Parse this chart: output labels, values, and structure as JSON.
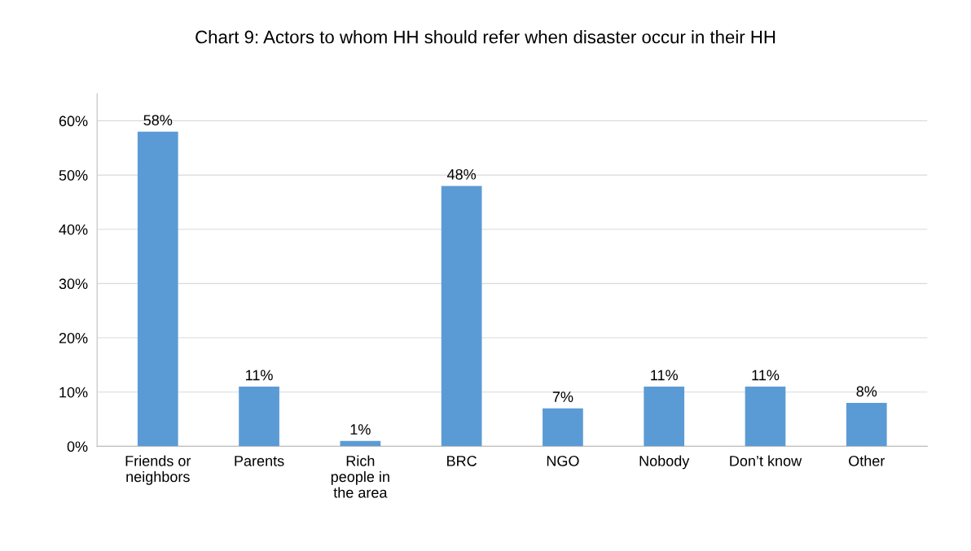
{
  "chart_data": {
    "type": "bar",
    "title": "Chart 9: Actors to whom HH should refer when disaster occur in their HH",
    "categories": [
      "Friends or\nneighbors",
      "Parents",
      "Rich\npeople in\nthe area",
      "BRC",
      "NGO",
      "Nobody",
      "Don’t know",
      "Other"
    ],
    "values": [
      58,
      11,
      1,
      48,
      7,
      11,
      11,
      8
    ],
    "value_labels": [
      "58%",
      "11%",
      "1%",
      "48%",
      "7%",
      "11%",
      "11%",
      "8%"
    ],
    "color": "#5b9bd5",
    "ylim": [
      0,
      65
    ],
    "yticks": [
      {
        "value": 0,
        "label": "0%"
      },
      {
        "value": 10,
        "label": "10%"
      },
      {
        "value": 20,
        "label": "20%"
      },
      {
        "value": 30,
        "label": "30%"
      },
      {
        "value": 40,
        "label": "40%"
      },
      {
        "value": 50,
        "label": "50%"
      },
      {
        "value": 60,
        "label": "60%"
      }
    ],
    "grid": "y"
  }
}
